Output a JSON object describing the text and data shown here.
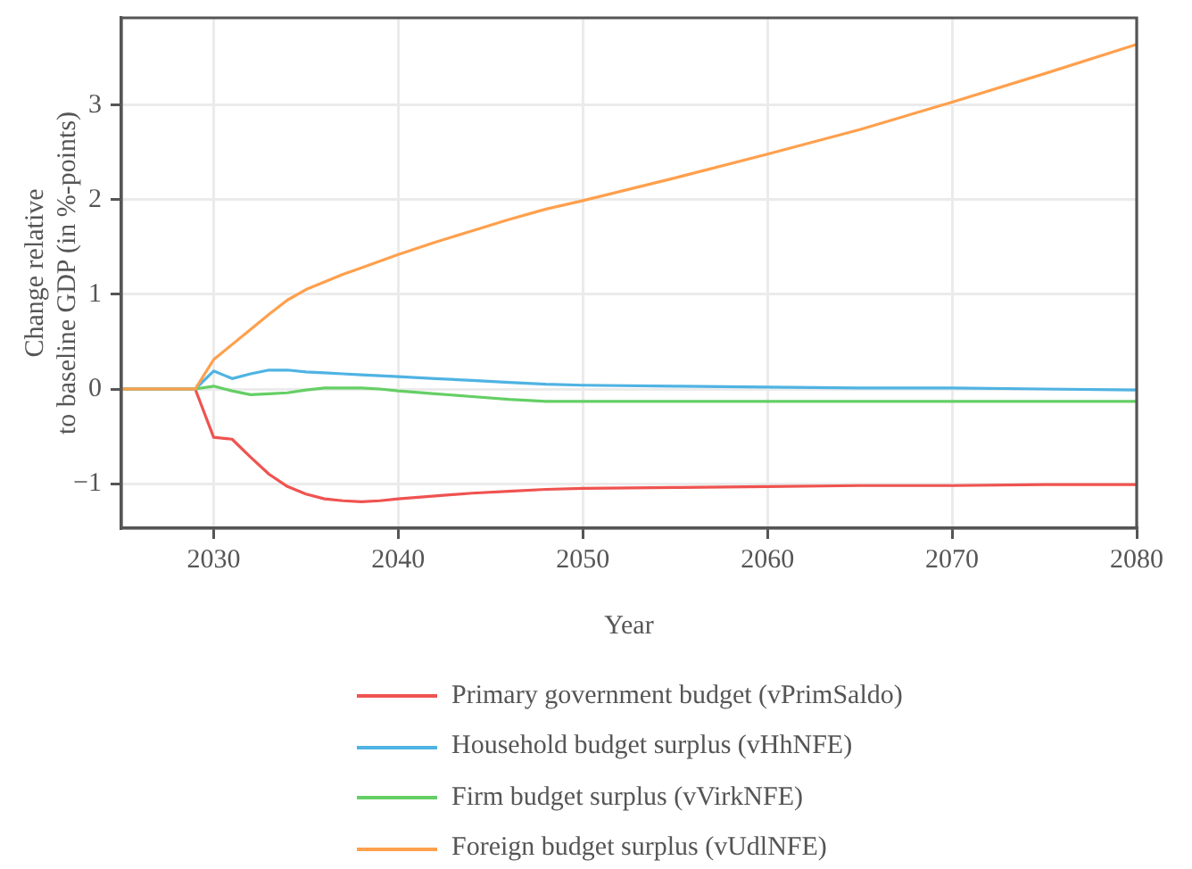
{
  "chart_data": {
    "type": "line",
    "xlabel": "Year",
    "ylabel": "Change relative\nto baseline GDP (in %-points)",
    "x": [
      2025,
      2029,
      2030,
      2031,
      2032,
      2033,
      2034,
      2035,
      2036,
      2037,
      2038,
      2039,
      2040,
      2042,
      2044,
      2046,
      2048,
      2050,
      2055,
      2060,
      2065,
      2070,
      2075,
      2080
    ],
    "series": [
      {
        "name": "Primary government budget (vPrimSaldo)",
        "color": "#ef5350",
        "values": [
          0,
          0,
          -0.51,
          -0.53,
          -0.72,
          -0.9,
          -1.03,
          -1.11,
          -1.16,
          -1.18,
          -1.19,
          -1.18,
          -1.16,
          -1.13,
          -1.1,
          -1.08,
          -1.06,
          -1.05,
          -1.04,
          -1.03,
          -1.02,
          -1.02,
          -1.01,
          -1.01
        ]
      },
      {
        "name": "Household budget surplus (vHhNFE)",
        "color": "#4fb3e3",
        "values": [
          0,
          0,
          0.19,
          0.11,
          0.16,
          0.2,
          0.2,
          0.18,
          0.17,
          0.16,
          0.15,
          0.14,
          0.13,
          0.11,
          0.09,
          0.07,
          0.05,
          0.04,
          0.03,
          0.02,
          0.01,
          0.01,
          0,
          -0.01
        ]
      },
      {
        "name": "Firm budget surplus (vVirkNFE)",
        "color": "#64cf64",
        "values": [
          0,
          0,
          0.03,
          -0.02,
          -0.06,
          -0.05,
          -0.04,
          -0.01,
          0.01,
          0.01,
          0.01,
          0,
          -0.02,
          -0.05,
          -0.08,
          -0.11,
          -0.13,
          -0.13,
          -0.13,
          -0.13,
          -0.13,
          -0.13,
          -0.13,
          -0.13
        ]
      },
      {
        "name": "Foreign budget surplus (vUdlNFE)",
        "color": "#ffa04d",
        "values": [
          0,
          0,
          0.31,
          0.47,
          0.63,
          0.79,
          0.94,
          1.05,
          1.13,
          1.21,
          1.28,
          1.35,
          1.42,
          1.55,
          1.67,
          1.79,
          1.9,
          1.99,
          2.23,
          2.48,
          2.74,
          3.03,
          3.33,
          3.64
        ]
      }
    ],
    "xlim": [
      2025,
      2080
    ],
    "ylim": [
      -1.47,
      3.92
    ],
    "xticks": [
      2030,
      2040,
      2050,
      2060,
      2070,
      2080
    ],
    "yticks": [
      {
        "value": -1,
        "label": "−1"
      },
      0,
      1,
      2,
      3
    ],
    "grid": true,
    "legend": "bottom"
  }
}
